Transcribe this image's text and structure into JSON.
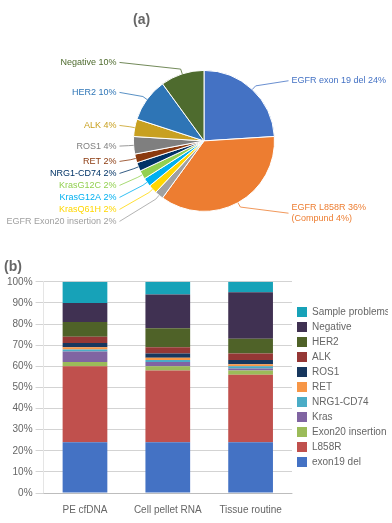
{
  "chart_data": [
    {
      "type": "pie",
      "title": "(a)",
      "categories": [
        "EGFR exon 19 del 24%",
        "EGFR L858R 36%\n(Compund 4%)",
        "EGFR Exon20 insertion 2%",
        "KrasQ61H 2%",
        "KrasG12A 2%",
        "KrasG12C 2%",
        "NRG1-CD74 2%",
        "RET 2%",
        "ROS1 4%",
        "ALK 4%",
        "HER2 10%",
        "Negative 10%"
      ],
      "values": [
        24,
        36,
        2,
        2,
        2,
        2,
        2,
        2,
        4,
        4,
        10,
        10
      ],
      "colors": [
        "#4472C4",
        "#ED7D31",
        "#A0A0A0",
        "#FFD700",
        "#00B0F0",
        "#92D050",
        "#003366",
        "#8B3A0F",
        "#7F7F7F",
        "#C8A020",
        "#2E75B6",
        "#4E6B2E"
      ]
    },
    {
      "type": "bar",
      "title": "(b)",
      "stacked": true,
      "categories": [
        "PE cfDNA",
        "Cell pellet RNA",
        "Tissue routine"
      ],
      "series": [
        {
          "name": "exon19 del",
          "color": "#4472C4",
          "values": [
            24,
            24,
            24
          ]
        },
        {
          "name": "L858R",
          "color": "#C0504D",
          "values": [
            36,
            34,
            32
          ]
        },
        {
          "name": "Exon20 insertion",
          "color": "#9BBB59",
          "values": [
            2,
            2,
            2
          ]
        },
        {
          "name": "Kras",
          "color": "#8064A2",
          "values": [
            5,
            2,
            1
          ]
        },
        {
          "name": "NRG1-CD74",
          "color": "#4BACC6",
          "values": [
            1,
            1,
            1
          ]
        },
        {
          "name": "RET",
          "color": "#F79646",
          "values": [
            1,
            1,
            1
          ]
        },
        {
          "name": "ROS1",
          "color": "#17375E",
          "values": [
            2,
            2,
            2
          ]
        },
        {
          "name": "ALK",
          "color": "#953735",
          "values": [
            3,
            3,
            3
          ]
        },
        {
          "name": "HER2",
          "color": "#4F6228",
          "values": [
            7,
            9,
            7
          ]
        },
        {
          "name": "Negative",
          "color": "#403152",
          "values": [
            9,
            16,
            22
          ]
        },
        {
          "name": "Sample problems",
          "color": "#17A2B8",
          "values": [
            10,
            6,
            5
          ]
        }
      ],
      "ylim": [
        0,
        100
      ],
      "yticks": [
        {
          "value": 0,
          "label": "0%"
        },
        {
          "value": 10,
          "label": "10%"
        },
        {
          "value": 20,
          "label": "20%"
        },
        {
          "value": 30,
          "label": "30%"
        },
        {
          "value": 40,
          "label": "40%"
        },
        {
          "value": 50,
          "label": "50%"
        },
        {
          "value": 60,
          "label": "60%"
        },
        {
          "value": 70,
          "label": "70%"
        },
        {
          "value": 80,
          "label": "80%"
        },
        {
          "value": 90,
          "label": "90%"
        },
        {
          "value": 100,
          "label": "100%"
        }
      ],
      "grid": "y",
      "legend": "right"
    }
  ]
}
